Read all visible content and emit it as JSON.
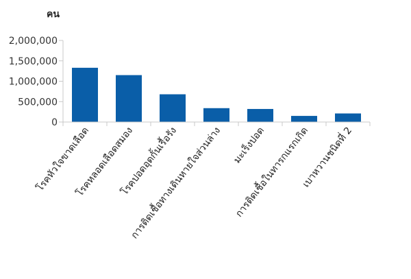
{
  "chart_data": {
    "type": "bar",
    "ylabel": "คน",
    "categories": [
      "โรคหัวใจขาดเลือด",
      "โรคหลอดเลือดสมอง",
      "โรคปอดอุดกั้นเรื้อรัง",
      "การติดเชื้อทางเดินหายใจส่วนล่าง",
      "มะเร็งปอด",
      "การติดเชื้อในทารกแรกเกิด",
      "เบาหวานชนิดที่ 2"
    ],
    "values": [
      1330000,
      1150000,
      680000,
      340000,
      320000,
      150000,
      210000
    ],
    "ylim": [
      0,
      2000000
    ],
    "yticks": [
      "0",
      "500,000",
      "1,000,000",
      "1,500,000",
      "2,000,000"
    ],
    "bar_color": "#0a5ea8",
    "axis_color": "#c8c8c8",
    "grid": false,
    "legend": "none"
  }
}
